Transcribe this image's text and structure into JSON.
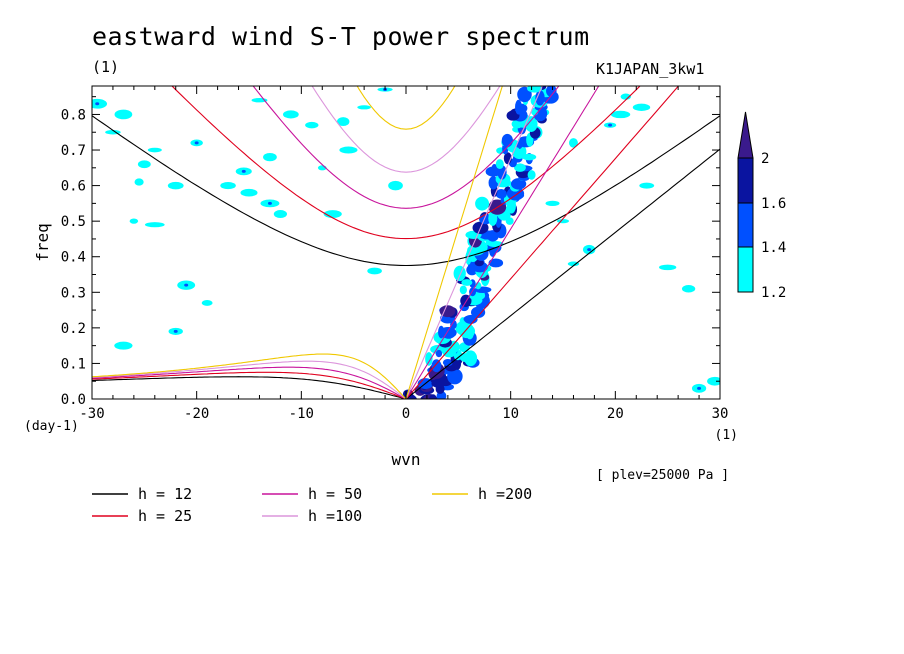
{
  "title": "eastward wind S-T power spectrum",
  "title_unit": "(1)",
  "run_label": "K1JAPAN_3kw1",
  "note": "[ plev=25000 Pa ]",
  "colors": {
    "h12": "#000000",
    "h25": "#e0001e",
    "h50": "#c8149c",
    "h100": "#dc96dc",
    "h200": "#f0c800",
    "shade_cyan": "#00ffff",
    "shade_blue": "#0050ff",
    "shade_navy": "#0a14a0",
    "shade_purple": "#3a1a8c"
  },
  "chart_data": {
    "type": "heatmap",
    "title": "eastward wind S-T power spectrum",
    "xlabel": "wvn",
    "ylabel": "freq",
    "x_unit": "(1)",
    "y_unit": "(day-1)",
    "xlim": [
      -30,
      30
    ],
    "ylim": [
      0,
      0.88
    ],
    "xticks": [
      "-30",
      "-20",
      "-10",
      "0",
      "10",
      "20",
      "30"
    ],
    "yticks": [
      "0.0",
      "0.1",
      "0.2",
      "0.3",
      "0.4",
      "0.5",
      "0.6",
      "0.7",
      "0.8"
    ],
    "colorbar": {
      "levels": [
        "1.2",
        "1.4",
        "1.6",
        "2"
      ],
      "colors": [
        "#00ffff",
        "#0050ff",
        "#0a14a0",
        "#3a1a8c"
      ]
    },
    "legend": [
      {
        "label": "h = 12",
        "color": "#000000",
        "h": 12
      },
      {
        "label": "h = 25",
        "color": "#e0001e",
        "h": 25
      },
      {
        "label": "h = 50",
        "color": "#c8149c",
        "h": 50
      },
      {
        "label": "h =100",
        "color": "#dc96dc",
        "h": 100
      },
      {
        "label": "h =200",
        "color": "#f0c800",
        "h": 200
      }
    ],
    "equivalent_depth_curves": [
      12,
      25,
      50,
      100,
      200
    ],
    "shading_description": "Power concentrated along Kelvin-wave branch from wvn 0 to ~13 at freq 0 to 0.88, with scattered weak patches elsewhere"
  }
}
